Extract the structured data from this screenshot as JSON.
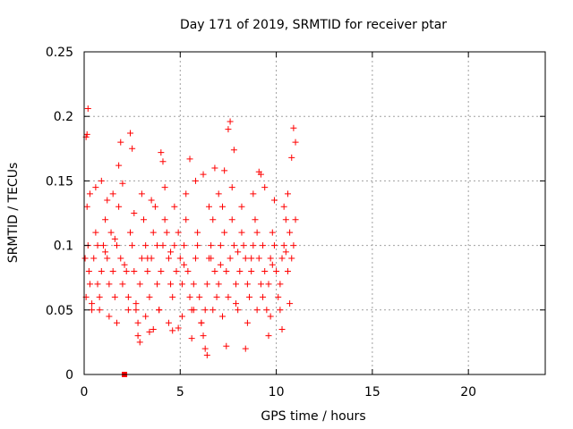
{
  "chart_data": {
    "type": "scatter",
    "title": "Day 171 of 2019, SRMTID for receiver ptar",
    "xlabel": "GPS time / hours",
    "ylabel": "SRMTID / TECUs",
    "xlim": [
      0,
      24
    ],
    "ylim": [
      0,
      0.25
    ],
    "xticks": [
      0,
      5,
      10,
      15,
      20
    ],
    "yticks": [
      0,
      0.05,
      0.1,
      0.15,
      0.2,
      0.25
    ],
    "xtick_labels": [
      "0",
      "5",
      "10",
      "15",
      "20"
    ],
    "ytick_labels": [
      "0",
      "0.05",
      "0.1",
      "0.15",
      "0.2",
      "0.25"
    ],
    "grid": true,
    "marker": "plus",
    "color": "#ff0000",
    "flagged_x": [
      2.1
    ],
    "flagged_y": [
      0
    ],
    "x": [
      0.05,
      0.1,
      0.15,
      0.2,
      0.25,
      0.3,
      0.4,
      0.5,
      0.6,
      0.7,
      0.8,
      0.9,
      1.0,
      1.1,
      1.2,
      1.3,
      1.4,
      1.5,
      1.6,
      1.7,
      1.8,
      1.9,
      2.0,
      2.2,
      2.3,
      2.4,
      2.5,
      2.6,
      2.7,
      2.8,
      2.9,
      3.0,
      3.1,
      3.2,
      3.3,
      3.4,
      3.5,
      3.6,
      3.7,
      3.8,
      3.9,
      4.0,
      4.1,
      4.2,
      4.3,
      4.4,
      4.5,
      4.6,
      4.7,
      4.8,
      4.9,
      5.0,
      5.1,
      5.2,
      5.3,
      5.4,
      5.5,
      5.6,
      5.7,
      5.8,
      5.9,
      6.0,
      6.1,
      6.2,
      6.3,
      6.4,
      6.5,
      6.6,
      6.7,
      6.8,
      6.9,
      7.0,
      7.1,
      7.2,
      7.3,
      7.4,
      7.5,
      7.6,
      7.7,
      7.8,
      7.9,
      8.0,
      8.1,
      8.2,
      8.3,
      8.4,
      8.5,
      8.6,
      8.7,
      8.8,
      8.9,
      9.0,
      9.1,
      9.2,
      9.3,
      9.4,
      9.5,
      9.6,
      9.7,
      9.8,
      9.9,
      10.0,
      10.1,
      10.2,
      10.3,
      10.4,
      10.5,
      10.6,
      10.7,
      10.8,
      10.9,
      11.0,
      0.2,
      0.15,
      0.1,
      1.8,
      1.9,
      2.5,
      2.4,
      4.0,
      4.1,
      5.5,
      6.2,
      6.8,
      7.3,
      7.5,
      7.6,
      7.8,
      9.1,
      9.2,
      10.8,
      10.9,
      11.0,
      3.4,
      2.8,
      2.9,
      3.6,
      4.6,
      4.9,
      5.6,
      6.3,
      6.4,
      7.4,
      8.4,
      9.6,
      10.3,
      0.3,
      0.6,
      0.9,
      1.2,
      1.5,
      2.0,
      2.6,
      3.0,
      3.5,
      4.2,
      4.7,
      5.3,
      5.8,
      6.5,
      7.0,
      7.7,
      8.2,
      8.8,
      9.4,
      9.9,
      10.4,
      10.6,
      0.4,
      0.8,
      1.3,
      1.7,
      2.3,
      2.7,
      3.2,
      3.9,
      4.4,
      5.1,
      5.7,
      6.1,
      6.7,
      7.2,
      7.9,
      8.5,
      9.0,
      9.7,
      10.2,
      10.7,
      0.7,
      1.1,
      1.6,
      2.1,
      3.3,
      3.8,
      4.5,
      5.2,
      5.9,
      6.6,
      7.1,
      8.0,
      8.7,
      9.3,
      9.8,
      10.5
    ],
    "y": [
      0.09,
      0.06,
      0.13,
      0.1,
      0.08,
      0.07,
      0.05,
      0.09,
      0.11,
      0.07,
      0.06,
      0.08,
      0.1,
      0.12,
      0.09,
      0.07,
      0.11,
      0.08,
      0.06,
      0.1,
      0.13,
      0.09,
      0.07,
      0.08,
      0.06,
      0.11,
      0.1,
      0.08,
      0.05,
      0.04,
      0.07,
      0.09,
      0.12,
      0.1,
      0.08,
      0.06,
      0.09,
      0.11,
      0.13,
      0.07,
      0.05,
      0.08,
      0.1,
      0.12,
      0.11,
      0.09,
      0.07,
      0.06,
      0.1,
      0.08,
      0.11,
      0.09,
      0.07,
      0.1,
      0.12,
      0.08,
      0.06,
      0.05,
      0.07,
      0.09,
      0.11,
      0.06,
      0.04,
      0.03,
      0.05,
      0.07,
      0.09,
      0.1,
      0.12,
      0.08,
      0.06,
      0.07,
      0.1,
      0.13,
      0.11,
      0.08,
      0.06,
      0.09,
      0.12,
      0.1,
      0.07,
      0.05,
      0.08,
      0.11,
      0.1,
      0.09,
      0.07,
      0.06,
      0.08,
      0.1,
      0.12,
      0.11,
      0.09,
      0.07,
      0.06,
      0.08,
      0.05,
      0.07,
      0.09,
      0.11,
      0.1,
      0.08,
      0.06,
      0.07,
      0.09,
      0.1,
      0.12,
      0.08,
      0.11,
      0.09,
      0.1,
      0.12,
      0.206,
      0.186,
      0.184,
      0.162,
      0.18,
      0.175,
      0.187,
      0.172,
      0.165,
      0.167,
      0.155,
      0.16,
      0.158,
      0.19,
      0.196,
      0.174,
      0.157,
      0.155,
      0.168,
      0.191,
      0.18,
      0.033,
      0.03,
      0.025,
      0.035,
      0.034,
      0.036,
      0.028,
      0.02,
      0.015,
      0.022,
      0.02,
      0.03,
      0.035,
      0.14,
      0.145,
      0.15,
      0.135,
      0.14,
      0.148,
      0.125,
      0.14,
      0.135,
      0.145,
      0.13,
      0.14,
      0.15,
      0.13,
      0.14,
      0.145,
      0.13,
      0.14,
      0.145,
      0.135,
      0.13,
      0.14,
      0.055,
      0.05,
      0.045,
      0.04,
      0.05,
      0.055,
      0.045,
      0.05,
      0.04,
      0.045,
      0.05,
      0.04,
      0.05,
      0.045,
      0.055,
      0.04,
      0.05,
      0.045,
      0.05,
      0.055,
      0.1,
      0.095,
      0.105,
      0.085,
      0.09,
      0.1,
      0.095,
      0.085,
      0.1,
      0.09,
      0.085,
      0.095,
      0.09,
      0.1,
      0.085,
      0.095
    ]
  }
}
